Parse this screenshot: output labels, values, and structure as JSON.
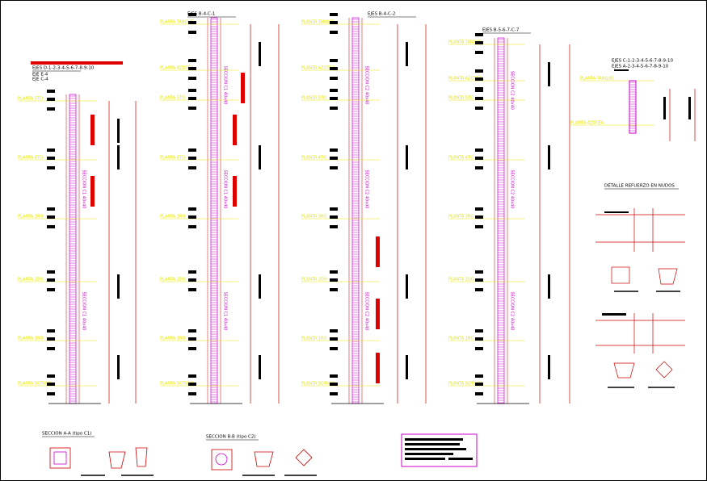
{
  "columns": [
    {
      "title": "EJES D-1-2-3-4-5-6-7-8-9-10",
      "subtitles": [
        "EJE E-4",
        "EJE C-4"
      ],
      "section_label": "SECCION C1 40x40",
      "levels": [
        "PLANTA 5TO",
        "PLANTA 4TO",
        "PLANTA 3RO",
        "PLANTA 2DO",
        "PLANTA 1RO",
        "PLANTA SOTANO"
      ]
    },
    {
      "title": "EJES B-4-C-1",
      "section_label": "SECCION C1 40x40",
      "levels": [
        "PLANTA TANQUE",
        "PLANTA AZOTEA",
        "PLANTA 5TO",
        "PLANTA 4TO",
        "PLANTA 3RO",
        "PLANTA 2DO",
        "PLANTA 1RO",
        "PLANTA SOTANO"
      ]
    },
    {
      "title": "EJES B-4-C-2",
      "section_label": "SECCION C2 40x40",
      "levels": [
        "PLANTA TANQUE",
        "PLANTA AZOTEA",
        "PLANTA 5TO",
        "PLANTA 4TO",
        "PLANTA 3RO",
        "PLANTA 2DO",
        "PLANTA 1RO",
        "PLANTA SOTANO"
      ]
    },
    {
      "title": "EJES B-5-6-7-C-7",
      "section_label": "SECCION C2 40x40",
      "levels": [
        "PLANTA TANQUE",
        "PLANTA AZOTEA",
        "PLANTA 5TO",
        "PLANTA 4TO",
        "PLANTA 3RO",
        "PLANTA 2DO",
        "PLANTA 1RO",
        "PLANTA SOTANO"
      ]
    }
  ],
  "detail": {
    "titles": [
      "EJES C-1-2-3-4-5-6-7-8-9-10",
      "EJES A-2-3-4-5-6-7-8-9-10"
    ],
    "levels": [
      "PLANTA TANQUE",
      "PLANTA AZOTEA"
    ]
  },
  "joint_detail": {
    "title": "DETALLE REFUERZO EN NUDOS"
  },
  "sections": [
    {
      "title": "SECCION A-A (tipo C1)"
    },
    {
      "title": "SECCION B-B (tipo C2)"
    }
  ]
}
